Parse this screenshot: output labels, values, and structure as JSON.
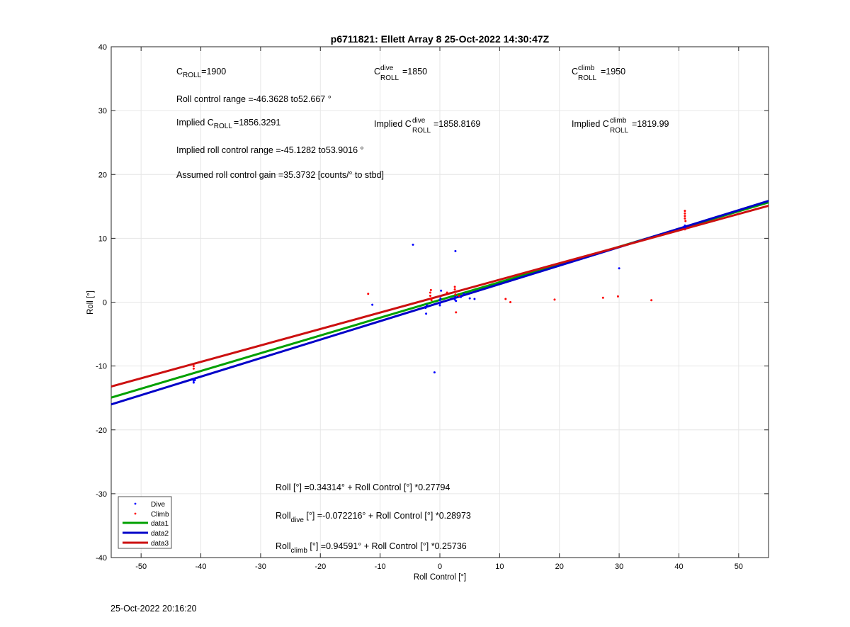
{
  "figure": {
    "timestamp": "25-Oct-2022 20:16:20"
  },
  "annotations": {
    "c_roll": "=1900",
    "c_roll_dive": "=1850",
    "c_roll_climb": "=1950",
    "roll_control_range": "Roll control range =-46.3628 to52.667 °",
    "implied_c_roll": "=1856.3291",
    "implied_c_roll_dive": "=1858.8169",
    "implied_c_roll_climb": "=1819.99",
    "implied_prefix": "Implied C",
    "implied_roll_control_range": "Implied roll control range =-45.1282 to53.9016 °",
    "assumed_gain": "Assumed roll control gain =35.3732 [counts/° to stbd]",
    "c_base": "C",
    "sub_roll": "ROLL",
    "sup_dive": "dive",
    "sup_climb": "climb",
    "fit_all": "Roll [°] =0.34314° + Roll Control [°] *0.27794",
    "fit_dive_prefix": "Roll",
    "fit_dive_sub": "dive",
    "fit_dive_rest": " [°] =-0.072216° + Roll Control [°] *0.28973",
    "fit_climb_prefix": "Roll",
    "fit_climb_sub": "climb",
    "fit_climb_rest": " [°] =0.94591° + Roll Control [°] *0.25736"
  },
  "chart_data": {
    "type": "scatter",
    "title": "p6711821: Ellett Array 8 25-Oct-2022 14:30:47Z",
    "xlabel": "Roll Control [°]",
    "ylabel": "Roll [°]",
    "xlim": [
      -55,
      55
    ],
    "ylim": [
      -40,
      40
    ],
    "xticks": [
      -50,
      -40,
      -30,
      -20,
      -10,
      0,
      10,
      20,
      30,
      40,
      50
    ],
    "yticks": [
      -40,
      -30,
      -20,
      -10,
      0,
      10,
      20,
      30,
      40
    ],
    "grid": true,
    "legend_position": "bottom-left",
    "series": [
      {
        "name": "Dive",
        "kind": "points",
        "color": "#0000ff",
        "points": [
          [
            -41.2,
            -12.0
          ],
          [
            -41.2,
            -12.3
          ],
          [
            -41.2,
            -12.6
          ],
          [
            -41.0,
            -12.2
          ],
          [
            -11.3,
            -0.4
          ],
          [
            -4.5,
            9.0
          ],
          [
            -2.3,
            -1.8
          ],
          [
            -2.4,
            -0.9
          ],
          [
            -2.2,
            -0.5
          ],
          [
            -0.9,
            -11.0
          ],
          [
            0.0,
            -0.2
          ],
          [
            0.0,
            0.3
          ],
          [
            0.0,
            -0.5
          ],
          [
            0.1,
            0.6
          ],
          [
            0.2,
            1.8
          ],
          [
            2.5,
            0.4
          ],
          [
            2.6,
            0.8
          ],
          [
            2.7,
            0.2
          ],
          [
            2.6,
            8.0
          ],
          [
            3.5,
            0.8
          ],
          [
            4.0,
            1.3
          ],
          [
            5.0,
            0.6
          ],
          [
            5.8,
            0.5
          ],
          [
            30.0,
            5.3
          ],
          [
            41.0,
            12.0
          ],
          [
            41.0,
            11.6
          ]
        ]
      },
      {
        "name": "Climb",
        "kind": "points",
        "color": "#ff0000",
        "points": [
          [
            -41.2,
            -10.0
          ],
          [
            -41.2,
            -10.4
          ],
          [
            -12.0,
            1.3
          ],
          [
            -1.6,
            1.0
          ],
          [
            -1.6,
            1.5
          ],
          [
            -1.5,
            0.6
          ],
          [
            -1.5,
            1.9
          ],
          [
            -1.4,
            0.3
          ],
          [
            1.2,
            1.5
          ],
          [
            2.5,
            2.0
          ],
          [
            2.5,
            2.4
          ],
          [
            2.6,
            1.2
          ],
          [
            2.7,
            -1.6
          ],
          [
            3.2,
            1.0
          ],
          [
            11.0,
            0.5
          ],
          [
            11.8,
            0.0
          ],
          [
            19.2,
            0.4
          ],
          [
            27.3,
            0.7
          ],
          [
            29.8,
            0.9
          ],
          [
            35.4,
            0.3
          ],
          [
            41.0,
            14.3
          ],
          [
            41.0,
            13.9
          ],
          [
            41.0,
            13.5
          ],
          [
            41.0,
            13.1
          ],
          [
            41.1,
            12.7
          ],
          [
            41.0,
            11.4
          ]
        ]
      },
      {
        "name": "data1",
        "kind": "line",
        "color": "#00a000",
        "intercept": 0.34314,
        "slope": 0.27794
      },
      {
        "name": "data2",
        "kind": "line",
        "color": "#0000c8",
        "intercept": -0.072216,
        "slope": 0.28973
      },
      {
        "name": "data3",
        "kind": "line",
        "color": "#cc1010",
        "intercept": 0.94591,
        "slope": 0.25736
      }
    ]
  }
}
